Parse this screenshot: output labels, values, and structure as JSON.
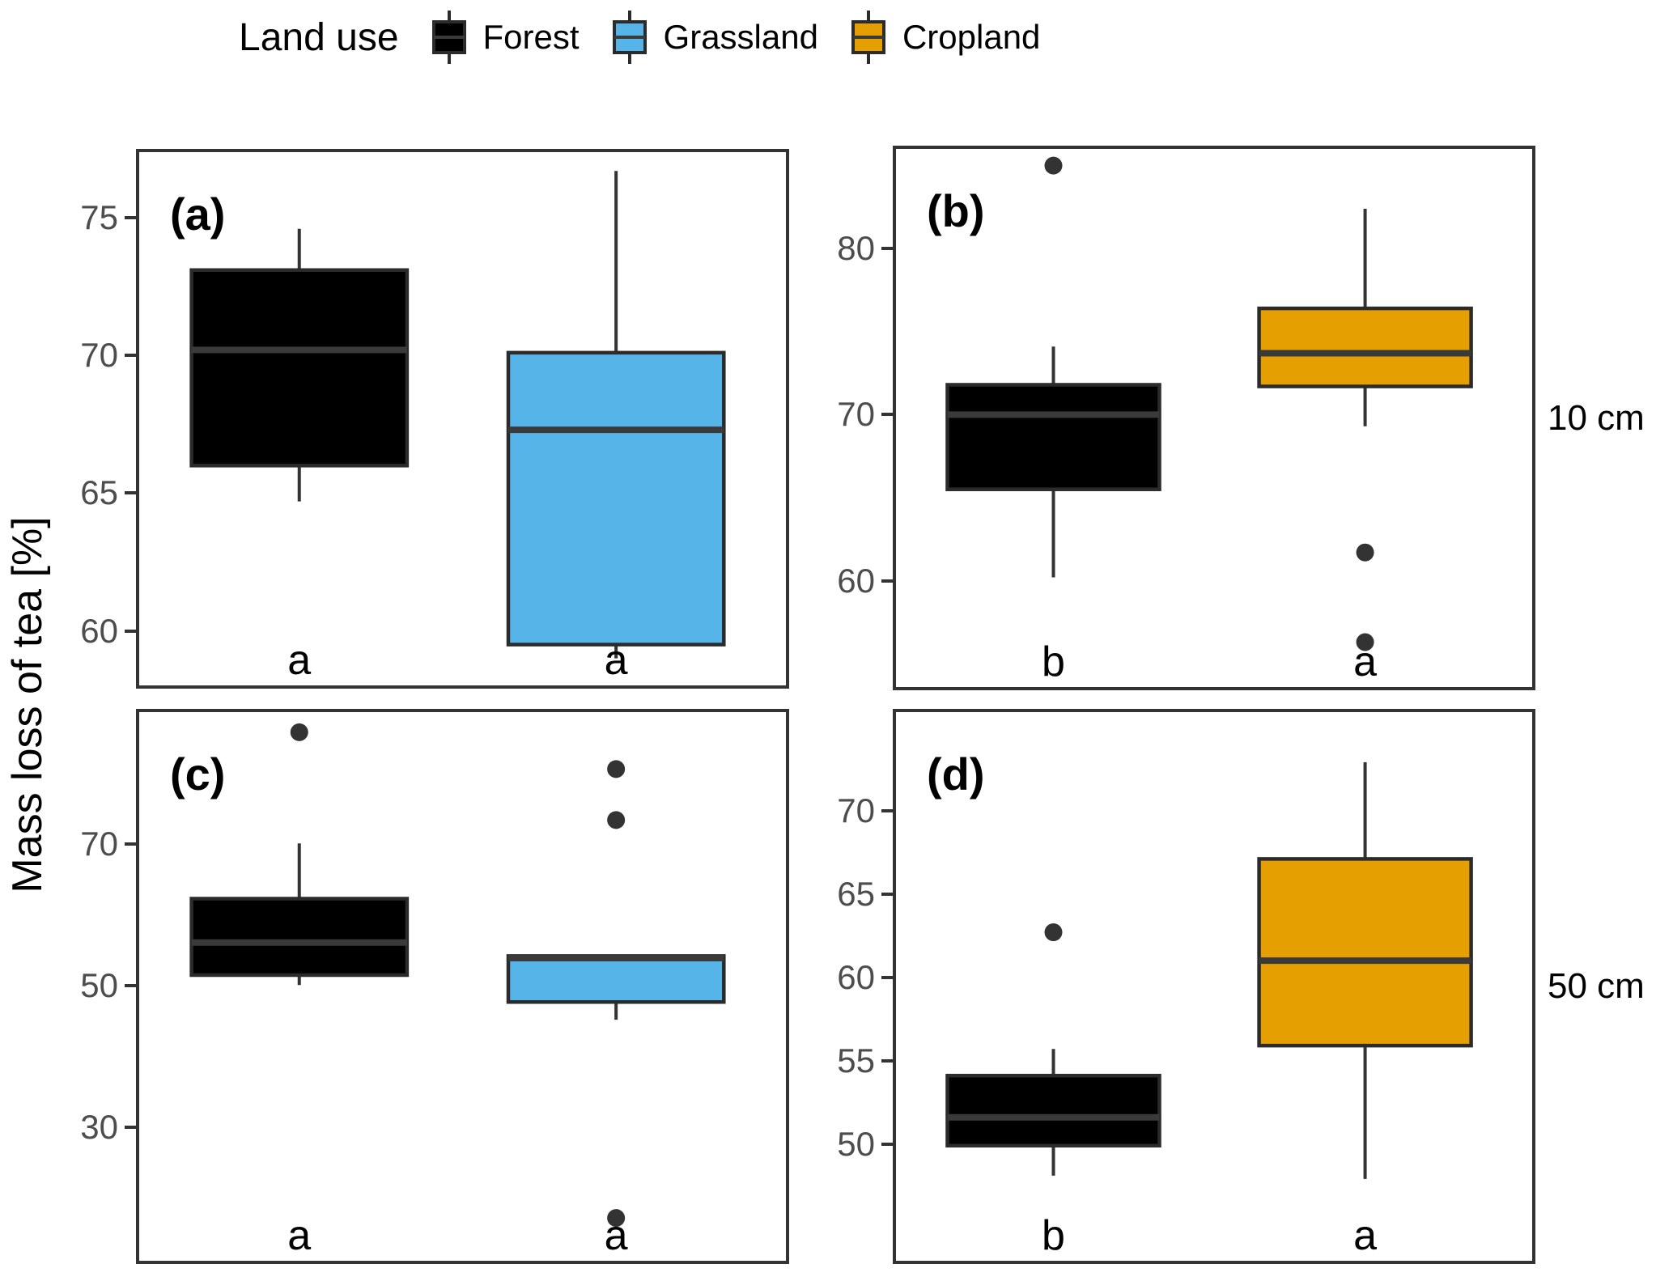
{
  "figure": {
    "background": "#ffffff",
    "legend": {
      "title": "Land use",
      "items": [
        {
          "label": "Forest",
          "fill": "#000000"
        },
        {
          "label": "Grassland",
          "fill": "#56B4E9"
        },
        {
          "label": "Cropland",
          "fill": "#E69F00"
        }
      ]
    },
    "y_axis_title": "Mass loss of tea [%]",
    "row_strip_labels": [
      "10 cm",
      "50 cm"
    ],
    "colors": {
      "box_stroke": "#2b2b2b",
      "median": "#3a3a3a",
      "whisker": "#333333",
      "outlier": "#333333",
      "panel_border": "#333333",
      "tick_label": "#4d4d4d",
      "tick_mark": "#333333",
      "sig_letter": "#000000",
      "panel_label": "#000000"
    }
  },
  "chart_data": {
    "type": "boxplot",
    "title": "",
    "ylabel": "Mass loss of tea [%]",
    "xlabel": "",
    "legend_title": "Land use",
    "legend_position": "top",
    "grid": false,
    "groups": [
      "Forest",
      "Grassland",
      "Cropland"
    ],
    "facet_rows": [
      "10 cm",
      "50 cm"
    ],
    "panels": [
      {
        "id": "a",
        "label": "(a)",
        "row": "10 cm",
        "ticks": [
          75,
          70,
          65,
          60
        ],
        "ylim": [
          57.9,
          77.5
        ],
        "boxes": [
          {
            "group": "Forest",
            "sig": "a",
            "whisker_low": 64.7,
            "q1": 66.0,
            "median": 70.2,
            "q3": 73.1,
            "whisker_high": 74.6,
            "outliers": []
          },
          {
            "group": "Grassland",
            "sig": "a",
            "whisker_low": 59.0,
            "q1": 59.5,
            "median": 67.3,
            "q3": 70.1,
            "whisker_high": 76.7,
            "outliers": []
          }
        ]
      },
      {
        "id": "b",
        "label": "(b)",
        "row": "10 cm",
        "ticks": [
          80,
          70,
          60
        ],
        "ylim": [
          53.4,
          86.2
        ],
        "boxes": [
          {
            "group": "Forest",
            "sig": "b",
            "whisker_low": 60.2,
            "q1": 65.5,
            "median": 70.0,
            "q3": 71.8,
            "whisker_high": 74.1,
            "outliers": [
              85.0
            ]
          },
          {
            "group": "Cropland",
            "sig": "a",
            "whisker_low": 69.3,
            "q1": 71.7,
            "median": 73.7,
            "q3": 76.4,
            "whisker_high": 82.4,
            "outliers": [
              61.7,
              56.3
            ]
          }
        ]
      },
      {
        "id": "c",
        "label": "(c)",
        "row": "50 cm",
        "ticks": [
          70,
          50,
          30
        ],
        "ylim": [
          10.7,
          89.1
        ],
        "boxes": [
          {
            "group": "Forest",
            "sig": "a",
            "whisker_low": 50.1,
            "q1": 51.5,
            "median": 56.1,
            "q3": 62.3,
            "whisker_high": 70.1,
            "outliers": [
              85.8
            ]
          },
          {
            "group": "Grassland",
            "sig": "a",
            "whisker_low": 45.2,
            "q1": 47.7,
            "median": 53.9,
            "q3": 54.2,
            "whisker_high": 54.2,
            "outliers": [
              80.6,
              73.4,
              17.2
            ]
          }
        ]
      },
      {
        "id": "d",
        "label": "(d)",
        "row": "50 cm",
        "ticks": [
          70,
          65,
          60,
          55,
          50
        ],
        "ylim": [
          42.8,
          76.1
        ],
        "boxes": [
          {
            "group": "Forest",
            "sig": "b",
            "whisker_low": 48.1,
            "q1": 49.9,
            "median": 51.6,
            "q3": 54.1,
            "whisker_high": 55.7,
            "outliers": [
              62.7
            ]
          },
          {
            "group": "Cropland",
            "sig": "a",
            "whisker_low": 47.9,
            "q1": 55.9,
            "median": 61.0,
            "q3": 67.1,
            "whisker_high": 72.9,
            "outliers": []
          }
        ]
      }
    ]
  }
}
